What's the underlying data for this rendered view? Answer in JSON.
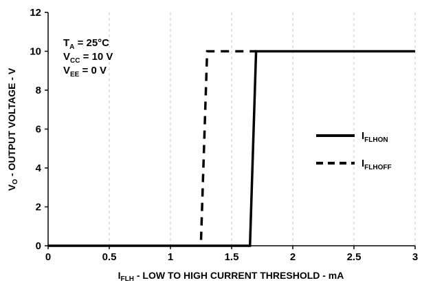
{
  "chart_data": {
    "type": "line",
    "xlabel": {
      "main": "I",
      "sub": "FLH",
      "rest": " - LOW TO HIGH CURRENT THRESHOLD - mA"
    },
    "ylabel": {
      "main": "V",
      "sub": "O",
      "rest": " - OUTPUT VOLTAGE - V"
    },
    "xlim": [
      0,
      3
    ],
    "ylim": [
      0,
      12
    ],
    "x_ticks": [
      "0",
      "0.5",
      "1",
      "1.5",
      "2",
      "2.5",
      "3"
    ],
    "y_ticks": [
      "0",
      "2",
      "4",
      "6",
      "8",
      "10",
      "12"
    ],
    "grid": "vertical dashed",
    "legend_position": "right",
    "annotations": [
      {
        "main": "T",
        "sub": "A",
        "rest": " = 25°C"
      },
      {
        "main": "V",
        "sub": "CC",
        "rest": " = 10 V"
      },
      {
        "main": "V",
        "sub": "EE",
        "rest": " = 0 V"
      }
    ],
    "series": [
      {
        "name_main": "I",
        "name_sub": "FLHON",
        "style": "solid",
        "x": [
          0,
          1.65,
          1.7,
          3.0
        ],
        "y": [
          0,
          0,
          10,
          10
        ]
      },
      {
        "name_main": "I",
        "name_sub": "FLHOFF",
        "style": "dashed",
        "x": [
          1.25,
          1.3,
          1.7
        ],
        "y": [
          0.3,
          10,
          10
        ]
      }
    ]
  }
}
